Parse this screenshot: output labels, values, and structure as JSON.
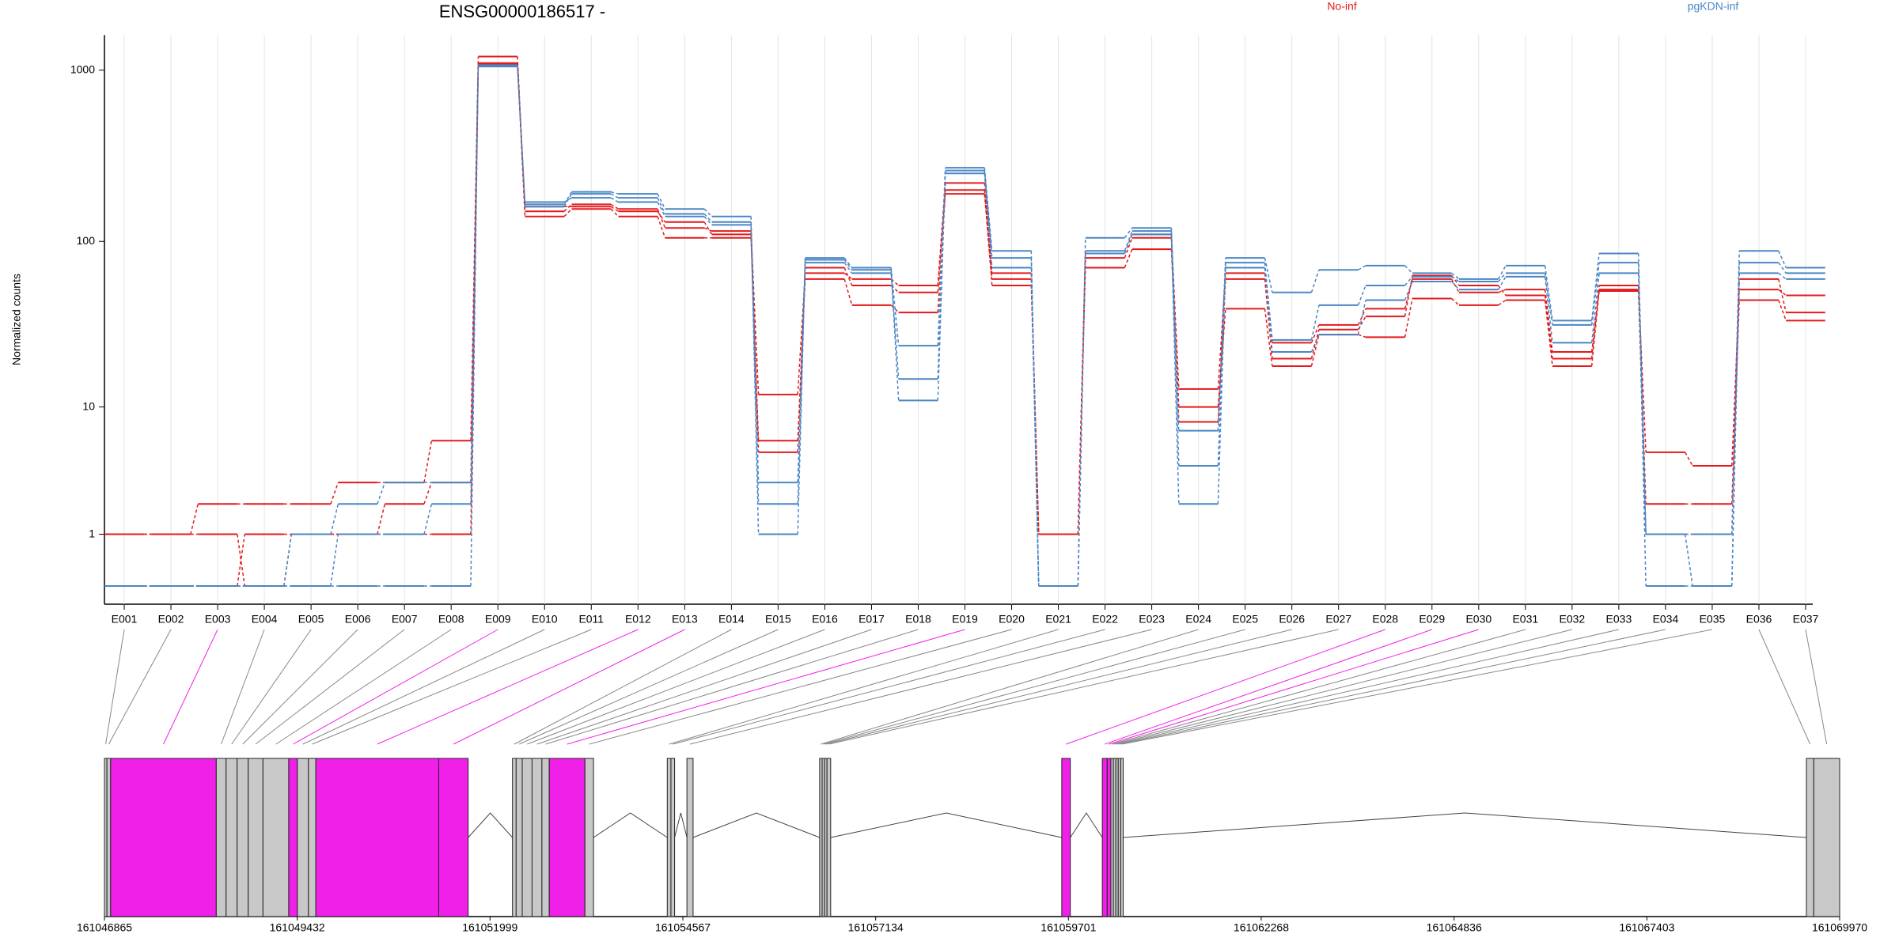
{
  "chart_data": {
    "type": "step-line",
    "title": "ENSG00000186517 -",
    "y_label": "Normalized counts",
    "yscale": "log1p",
    "ylim": [
      0,
      1600
    ],
    "yticks": [
      1,
      10,
      100,
      1000
    ],
    "grid": true,
    "legend": "top-right",
    "categories": [
      "E001",
      "E002",
      "E003",
      "E004",
      "E005",
      "E006",
      "E007",
      "E008",
      "E009",
      "E010",
      "E011",
      "E012",
      "E013",
      "E014",
      "E015",
      "E016",
      "E017",
      "E018",
      "E019",
      "E020",
      "E021",
      "E022",
      "E023",
      "E024",
      "E025",
      "E026",
      "E027",
      "E028",
      "E029",
      "E030",
      "E031",
      "E032",
      "E033",
      "E034",
      "E035",
      "E036",
      "E037"
    ],
    "series": [
      {
        "name": "No-inf",
        "color": "#e31a1c",
        "values": [
          [
            1,
            1,
            2,
            2,
            2,
            3,
            3,
            6,
            1200,
            150,
            165,
            155,
            120,
            115,
            12,
            65,
            60,
            55,
            220,
            65,
            1,
            85,
            110,
            13,
            65,
            25,
            32,
            40,
            60,
            50,
            52,
            22,
            52,
            5,
            4,
            52,
            48
          ],
          [
            1,
            1,
            1,
            0,
            1,
            1,
            2,
            3,
            1100,
            140,
            155,
            140,
            105,
            105,
            6,
            60,
            42,
            38,
            190,
            55,
            1,
            70,
            90,
            10,
            40,
            18,
            28,
            27,
            46,
            42,
            45,
            18,
            51,
            2,
            2,
            45,
            34
          ],
          [
            0,
            0,
            0,
            1,
            1,
            1,
            1,
            1,
            1080,
            160,
            160,
            150,
            130,
            110,
            5,
            70,
            55,
            50,
            200,
            60,
            1,
            80,
            105,
            8,
            60,
            20,
            30,
            36,
            63,
            55,
            48,
            20,
            55,
            1,
            1,
            60,
            38
          ]
        ]
      },
      {
        "name": "pgKDN-inf",
        "color": "#4a86c5",
        "values": [
          [
            0,
            0,
            0,
            0,
            1,
            2,
            3,
            3,
            1070,
            165,
            195,
            190,
            155,
            140,
            3,
            80,
            70,
            24,
            270,
            88,
            0,
            105,
            120,
            7,
            80,
            50,
            68,
            72,
            65,
            60,
            72,
            34,
            85,
            1,
            1,
            88,
            70
          ],
          [
            0,
            0,
            0,
            0,
            0,
            1,
            1,
            2,
            1060,
            160,
            190,
            180,
            145,
            130,
            2,
            75,
            65,
            15,
            260,
            80,
            0,
            88,
            115,
            4,
            75,
            26,
            42,
            55,
            62,
            58,
            65,
            32,
            75,
            0,
            0,
            75,
            65
          ],
          [
            0,
            0,
            0,
            0,
            0,
            0,
            0,
            0,
            1050,
            170,
            180,
            170,
            140,
            125,
            1,
            78,
            68,
            11,
            250,
            70,
            0,
            85,
            110,
            2,
            70,
            22,
            28,
            45,
            58,
            52,
            62,
            25,
            65,
            1,
            0,
            65,
            60
          ]
        ]
      }
    ]
  },
  "gene_model": {
    "xlim": [
      161046865,
      161069970
    ],
    "xticks": [
      161046865,
      161049432,
      161051999,
      161054567,
      161057134,
      161059701,
      161062268,
      161064836,
      161067403,
      161069970
    ],
    "significant_color": "#f020e8",
    "other_color": "#c8c8c8",
    "exons": {
      "start": [
        161046865,
        161046898,
        161046947,
        161048354,
        161048485,
        161048632,
        161048779,
        161048976,
        161049319,
        161049434,
        161049581,
        161049679,
        161051316,
        161052298,
        161052347,
        161052428,
        161052559,
        161052690,
        161052788,
        161053263,
        161054359,
        161054408,
        161054621,
        161056388,
        161056421,
        161056454,
        161056486,
        161059612,
        161060152,
        161060217,
        161060266,
        161060299,
        161060332,
        161060364,
        161060397,
        161069527,
        161069625
      ],
      "end": [
        161046898,
        161046947,
        161048354,
        161048485,
        161048632,
        161048779,
        161048976,
        161049319,
        161049434,
        161049581,
        161049679,
        161051316,
        161051708,
        161052347,
        161052428,
        161052559,
        161052690,
        161052788,
        161053263,
        161053377,
        161054408,
        161054457,
        161054703,
        161056421,
        161056454,
        161056486,
        161056535,
        161059726,
        161060217,
        161060266,
        161060299,
        161060332,
        161060364,
        161060397,
        161060430,
        161069625,
        161069970
      ],
      "significant": [
        false,
        false,
        true,
        false,
        false,
        false,
        false,
        false,
        true,
        false,
        false,
        true,
        true,
        false,
        false,
        false,
        false,
        false,
        true,
        false,
        false,
        false,
        false,
        false,
        false,
        false,
        false,
        true,
        true,
        true,
        false,
        false,
        false,
        false,
        false,
        false,
        false
      ]
    }
  }
}
